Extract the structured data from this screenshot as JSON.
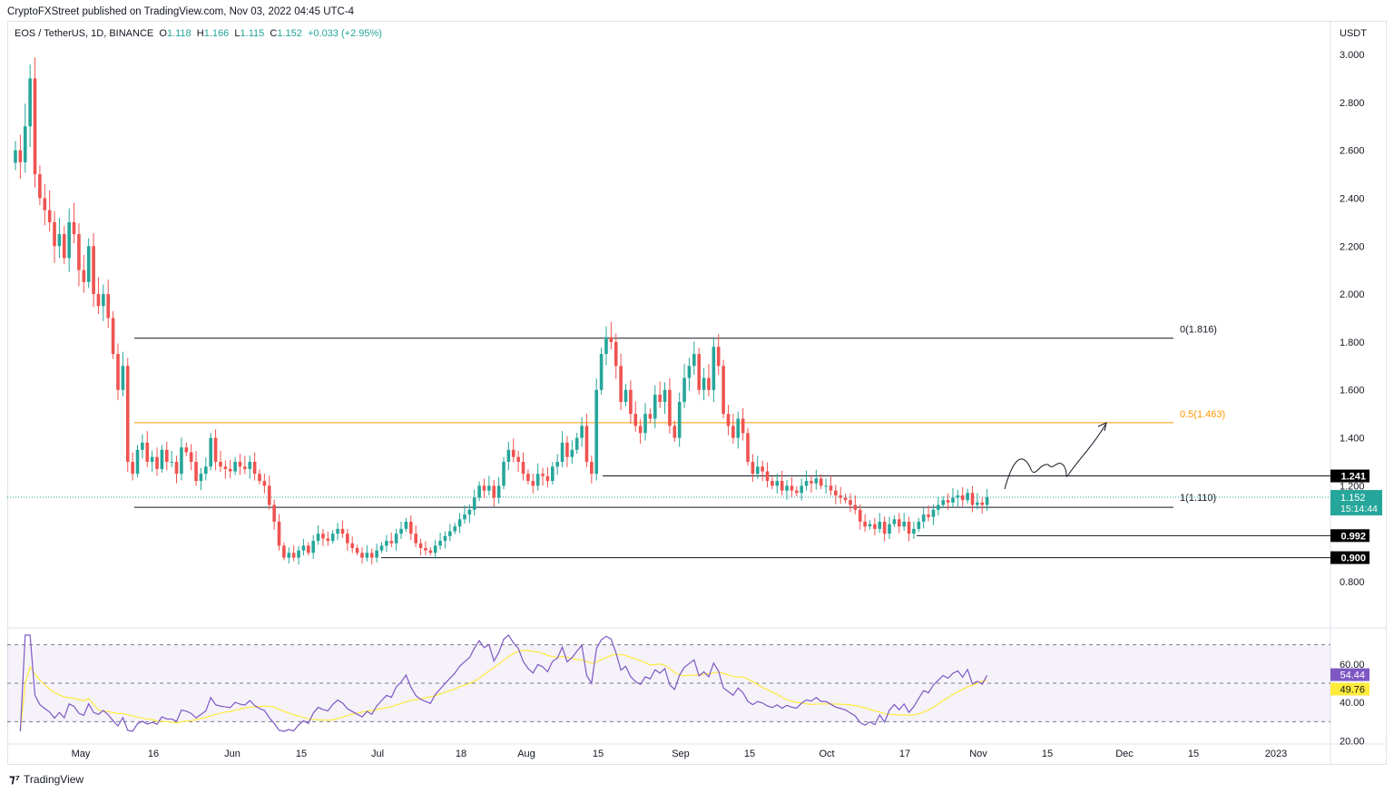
{
  "header": {
    "published": "CryptoFXStreet published on TradingView.com, Nov 03, 2022 04:45 UTC-4"
  },
  "legend": {
    "symbol": "EOS / TetherUS, 1D, BINANCE",
    "o_label": "O",
    "o": "1.118",
    "h_label": "H",
    "h": "1.166",
    "l_label": "L",
    "l": "1.115",
    "c_label": "C",
    "c": "1.152",
    "change": "+0.033 (+2.95%)"
  },
  "footer": {
    "brand": "TradingView"
  },
  "colors": {
    "up": "#26a69a",
    "down": "#ef5350",
    "fib_mid": "#ff9800",
    "rsi": "#7e57c2",
    "rsi_ma": "#ffeb3b"
  },
  "chart_data": [
    {
      "type": "candlestick",
      "title": "EOS / TetherUS, 1D",
      "currency": "USDT",
      "ylim": [
        0.8,
        3.0
      ],
      "yticks": [
        "3.000",
        "2.800",
        "2.600",
        "2.400",
        "2.200",
        "2.000",
        "1.800",
        "1.600",
        "1.400",
        "1.200",
        "0.800"
      ],
      "xticks": [
        "May",
        "16",
        "Jun",
        "15",
        "Jul",
        "18",
        "Aug",
        "15",
        "Sep",
        "15",
        "Oct",
        "17",
        "Nov",
        "15",
        "Dec",
        "15",
        "2023"
      ],
      "start": "2022-04-18",
      "closes": [
        2.6,
        2.55,
        2.7,
        2.9,
        2.5,
        2.4,
        2.35,
        2.3,
        2.2,
        2.25,
        2.15,
        2.3,
        2.25,
        2.1,
        2.05,
        2.2,
        2.0,
        1.95,
        2.0,
        1.9,
        1.75,
        1.6,
        1.7,
        1.3,
        1.25,
        1.35,
        1.38,
        1.3,
        1.32,
        1.27,
        1.35,
        1.3,
        1.3,
        1.25,
        1.36,
        1.34,
        1.3,
        1.22,
        1.25,
        1.28,
        1.4,
        1.3,
        1.28,
        1.27,
        1.26,
        1.3,
        1.28,
        1.27,
        1.3,
        1.25,
        1.22,
        1.2,
        1.12,
        1.05,
        0.95,
        0.9,
        0.92,
        0.9,
        0.93,
        0.95,
        0.92,
        0.97,
        1.0,
        0.98,
        0.97,
        1.0,
        1.02,
        1.0,
        0.96,
        0.94,
        0.92,
        0.9,
        0.92,
        0.9,
        0.93,
        0.95,
        0.97,
        0.96,
        1.0,
        1.02,
        1.05,
        1.0,
        0.96,
        0.94,
        0.93,
        0.92,
        0.95,
        0.97,
        0.99,
        1.01,
        1.03,
        1.06,
        1.08,
        1.1,
        1.15,
        1.2,
        1.18,
        1.2,
        1.15,
        1.2,
        1.3,
        1.35,
        1.32,
        1.3,
        1.25,
        1.22,
        1.2,
        1.25,
        1.24,
        1.22,
        1.28,
        1.3,
        1.38,
        1.32,
        1.35,
        1.4,
        1.45,
        1.3,
        1.25,
        1.6,
        1.75,
        1.82,
        1.8,
        1.7,
        1.55,
        1.6,
        1.5,
        1.45,
        1.42,
        1.5,
        1.48,
        1.58,
        1.55,
        1.6,
        1.45,
        1.4,
        1.55,
        1.65,
        1.7,
        1.75,
        1.6,
        1.65,
        1.6,
        1.78,
        1.7,
        1.5,
        1.45,
        1.4,
        1.48,
        1.42,
        1.3,
        1.25,
        1.28,
        1.26,
        1.22,
        1.2,
        1.22,
        1.18,
        1.2,
        1.18,
        1.17,
        1.2,
        1.22,
        1.21,
        1.23,
        1.2,
        1.2,
        1.18,
        1.16,
        1.15,
        1.14,
        1.12,
        1.1,
        1.05,
        1.03,
        1.04,
        1.02,
        1.05,
        1.0,
        1.04,
        1.06,
        1.03,
        1.05,
        1.0,
        1.02,
        1.05,
        1.08,
        1.07,
        1.1,
        1.12,
        1.14,
        1.13,
        1.15,
        1.16,
        1.14,
        1.17,
        1.12,
        1.13,
        1.12,
        1.152
      ],
      "levels": [
        {
          "label": "0(1.816)",
          "value": 1.816
        },
        {
          "label": "0.5(1.463)",
          "value": 1.463,
          "color": "#ff9800"
        },
        {
          "label": "1(1.110)",
          "value": 1.11
        },
        {
          "label": "1.241",
          "value": 1.241
        },
        {
          "label": "0.992",
          "value": 0.992
        },
        {
          "label": "0.900",
          "value": 0.9
        }
      ],
      "last_price": "1.152",
      "countdown": "15:14:44"
    },
    {
      "type": "line",
      "title": "RSI",
      "ylim": [
        20,
        80
      ],
      "yticks": [
        "60.00",
        "40.00",
        "20.00"
      ],
      "bands": [
        30,
        50,
        70
      ],
      "rsi_last": "54.44",
      "ma_last": "49.76"
    }
  ]
}
